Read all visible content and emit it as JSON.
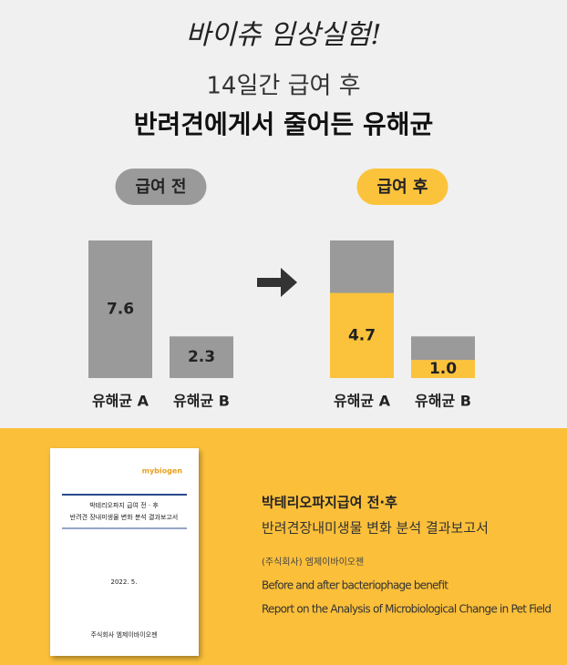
{
  "header": {
    "tagline": "바이츄 임상실험!",
    "subtitle": "14일간 급여 후",
    "title": "반려견에게서 줄어든 유해균"
  },
  "chart_data": [
    {
      "type": "bar",
      "title": "급여 전",
      "categories": [
        "유해균 A",
        "유해균 B"
      ],
      "values": [
        7.6,
        2.3
      ],
      "color": "#9a9a9a",
      "ylim": [
        0,
        8
      ]
    },
    {
      "type": "bar",
      "title": "급여 후",
      "categories": [
        "유해균 A",
        "유해균 B"
      ],
      "values": [
        4.7,
        1
      ],
      "value_labels": [
        "4.7",
        "1.0"
      ],
      "color": "#fbc33c",
      "ylim": [
        0,
        8
      ]
    }
  ],
  "report": {
    "logo": "mybiogen",
    "doc_title_1": "박테리오파지 급여 전 · 후",
    "doc_title_2": "반려견 장내미생물 변화 분석 결과보고서",
    "doc_date": "2022. 5.",
    "doc_company": "주식회사 엠제이바이오젠",
    "title": "박테리오파지급여 전·후",
    "subtitle": "반려견장내미생물 변화 분석 결과보고서",
    "company": "(주식회사) 엠제이바이오젠",
    "en_line_1": "Before and after bacteriophage benefit",
    "en_line_2": "Report on the Analysis of Microbiological Change in Pet Field"
  }
}
